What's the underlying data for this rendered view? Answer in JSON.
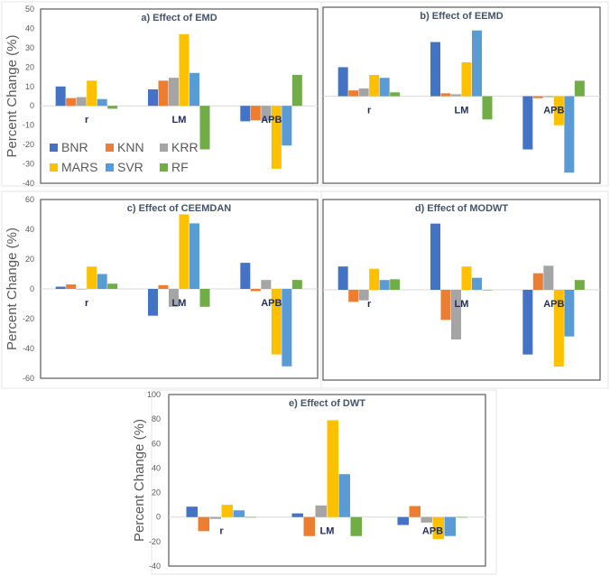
{
  "chart_data": {
    "type": "bar",
    "legend": {
      "placement": "inside panel a, bottom-left",
      "entries": [
        "BNR",
        "KNN",
        "KRR",
        "MARS",
        "SVR",
        "RF"
      ]
    },
    "colors": {
      "BNR": "#4472C4",
      "KNN": "#ED7D31",
      "KRR": "#A5A5A5",
      "MARS": "#FFC000",
      "SVR": "#5B9BD5",
      "RF": "#70AD47"
    },
    "panels": [
      {
        "title": "a) Effect of EMD",
        "ylabel": "Percent Change (%)",
        "ylim": [
          -40,
          50
        ],
        "ticks": [
          "50",
          "40",
          "30",
          "20",
          "10",
          "0",
          "-10",
          "-20",
          "-30",
          "-40"
        ],
        "tick_values": [
          50,
          40,
          30,
          20,
          10,
          0,
          -10,
          -20,
          -30,
          -40
        ],
        "categories": [
          "r",
          "LM",
          "APB"
        ],
        "series": [
          {
            "name": "BNR",
            "values": [
              10,
              8.5,
              -8
            ]
          },
          {
            "name": "KNN",
            "values": [
              4,
              13,
              -7.5
            ]
          },
          {
            "name": "KRR",
            "values": [
              4.5,
              14.5,
              -7.5
            ]
          },
          {
            "name": "MARS",
            "values": [
              13,
              37,
              -32.5
            ]
          },
          {
            "name": "SVR",
            "values": [
              3.5,
              17,
              -20.5
            ]
          },
          {
            "name": "RF",
            "values": [
              -1.5,
              -22.5,
              16
            ]
          }
        ]
      },
      {
        "title": "b) Effect of EEMD",
        "ylabel": "",
        "ylim": [
          -45,
          46
        ],
        "ticks": [],
        "tick_values": [],
        "categories": [
          "r",
          "LM",
          "APB"
        ],
        "series": [
          {
            "name": "BNR",
            "values": [
              15,
              28,
              -27.5
            ]
          },
          {
            "name": "KNN",
            "values": [
              3,
              1.5,
              -1
            ]
          },
          {
            "name": "KRR",
            "values": [
              4,
              1,
              -0.5
            ]
          },
          {
            "name": "MARS",
            "values": [
              11,
              17.5,
              -15
            ]
          },
          {
            "name": "SVR",
            "values": [
              9.5,
              34,
              -39.5
            ]
          },
          {
            "name": "RF",
            "values": [
              2,
              -12,
              8
            ]
          }
        ]
      },
      {
        "title": "c) Effect of CEEMDAN",
        "ylabel": "Percent Change (%)",
        "ylim": [
          -60,
          60
        ],
        "ticks": [
          "60",
          "40",
          "20",
          "0",
          "-20",
          "-40",
          "-60"
        ],
        "tick_values": [
          60,
          40,
          20,
          0,
          -20,
          -40,
          -60
        ],
        "categories": [
          "r",
          "LM",
          "APB"
        ],
        "series": [
          {
            "name": "BNR",
            "values": [
              1.5,
              -18,
              17.5
            ]
          },
          {
            "name": "KNN",
            "values": [
              3,
              2.5,
              -1.5
            ]
          },
          {
            "name": "KRR",
            "values": [
              0,
              -12,
              6
            ]
          },
          {
            "name": "MARS",
            "values": [
              15,
              50,
              -44
            ]
          },
          {
            "name": "SVR",
            "values": [
              10,
              44,
              -52
            ]
          },
          {
            "name": "RF",
            "values": [
              3.5,
              -12,
              6
            ]
          }
        ]
      },
      {
        "title": "d) Effect of MODWT",
        "ylabel": "",
        "ylim": [
          -60,
          60
        ],
        "ticks": [],
        "tick_values": [],
        "categories": [
          "r",
          "LM",
          "APB"
        ],
        "series": [
          {
            "name": "BNR",
            "values": [
              15.5,
              44,
              -43
            ]
          },
          {
            "name": "KNN",
            "values": [
              -8,
              -20,
              11
            ]
          },
          {
            "name": "KRR",
            "values": [
              -7,
              -33,
              16
            ]
          },
          {
            "name": "MARS",
            "values": [
              14,
              15.5,
              -51
            ]
          },
          {
            "name": "SVR",
            "values": [
              6.5,
              8,
              -31
            ]
          },
          {
            "name": "RF",
            "values": [
              7,
              0,
              6.5
            ]
          }
        ]
      },
      {
        "title": "e) Effect of DWT",
        "ylabel": "Percent Change (%)",
        "ylim": [
          -40,
          100
        ],
        "ticks": [
          "100",
          "80",
          "60",
          "40",
          "20",
          "0",
          "-20",
          "-40"
        ],
        "tick_values": [
          100,
          80,
          60,
          40,
          20,
          0,
          -20,
          -40
        ],
        "categories": [
          "r",
          "LM",
          "APB"
        ],
        "series": [
          {
            "name": "BNR",
            "values": [
              8.5,
              3,
              -6.5
            ]
          },
          {
            "name": "KNN",
            "values": [
              -11.5,
              -15.5,
              9
            ]
          },
          {
            "name": "KRR",
            "values": [
              -1.5,
              9.5,
              -4.5
            ]
          },
          {
            "name": "MARS",
            "values": [
              10,
              79,
              -18
            ]
          },
          {
            "name": "SVR",
            "values": [
              5.5,
              35,
              -15.5
            ]
          },
          {
            "name": "RF",
            "values": [
              0,
              -15.5,
              0
            ]
          }
        ]
      }
    ]
  }
}
